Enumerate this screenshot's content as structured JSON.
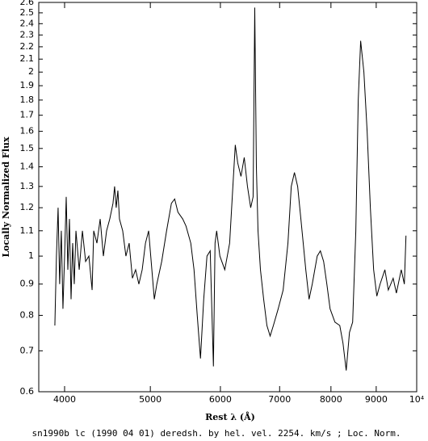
{
  "chart_data": {
    "type": "line",
    "x_label": "Rest λ (Å)",
    "y_label": "Locally Normalized Flux",
    "caption": "sn1990b lc (1990 04 01) deredsh. by hel. vel.  2254. km/s ;  Loc. Norm.",
    "x": [
      3900,
      3916,
      3933,
      3949,
      3966,
      3983,
      4000,
      4017,
      4034,
      4051,
      4068,
      4085,
      4102,
      4120,
      4155,
      4190,
      4225,
      4261,
      4297,
      4315,
      4351,
      4388,
      4425,
      4462,
      4499,
      4537,
      4556,
      4575,
      4595,
      4614,
      4653,
      4692,
      4732,
      4772,
      4812,
      4853,
      4895,
      4937,
      4978,
      5020,
      5052,
      5085,
      5150,
      5216,
      5282,
      5327,
      5372,
      5440,
      5486,
      5555,
      5602,
      5649,
      5697,
      5745,
      5794,
      5843,
      5892,
      5917,
      5942,
      5992,
      6069,
      6146,
      6198,
      6237,
      6277,
      6330,
      6384,
      6438,
      6492,
      6533,
      6561,
      6589,
      6617,
      6659,
      6715,
      6772,
      6829,
      6887,
      6974,
      7064,
      7153,
      7215,
      7275,
      7336,
      7398,
      7493,
      7557,
      7620,
      7719,
      7783,
      7849,
      7915,
      7982,
      8083,
      8186,
      8255,
      8324,
      8395,
      8465,
      8535,
      8589,
      8643,
      8716,
      8790,
      8864,
      8940,
      9015,
      9091,
      9206,
      9288,
      9406,
      9485,
      9606,
      9684,
      9725
    ],
    "values": [
      0.77,
      1.0,
      1.2,
      0.9,
      1.1,
      0.82,
      1.0,
      1.25,
      0.95,
      1.15,
      0.85,
      1.05,
      0.9,
      1.1,
      0.95,
      1.1,
      0.98,
      1.0,
      0.88,
      1.1,
      1.05,
      1.15,
      1.0,
      1.1,
      1.15,
      1.22,
      1.3,
      1.2,
      1.28,
      1.15,
      1.1,
      1.0,
      1.05,
      0.92,
      0.95,
      0.9,
      0.95,
      1.05,
      1.1,
      0.95,
      0.85,
      0.9,
      0.98,
      1.1,
      1.22,
      1.24,
      1.18,
      1.15,
      1.12,
      1.05,
      0.95,
      0.8,
      0.68,
      0.85,
      1.0,
      1.02,
      0.66,
      1.05,
      1.1,
      1.0,
      0.95,
      1.05,
      1.3,
      1.52,
      1.42,
      1.35,
      1.45,
      1.3,
      1.2,
      1.25,
      2.55,
      1.4,
      1.1,
      0.95,
      0.85,
      0.77,
      0.74,
      0.77,
      0.82,
      0.88,
      1.05,
      1.3,
      1.37,
      1.3,
      1.15,
      0.95,
      0.85,
      0.9,
      1.0,
      1.02,
      0.98,
      0.9,
      0.82,
      0.78,
      0.77,
      0.72,
      0.65,
      0.75,
      0.78,
      1.1,
      1.8,
      2.25,
      2.0,
      1.6,
      1.2,
      0.95,
      0.86,
      0.9,
      0.95,
      0.88,
      0.92,
      0.87,
      0.95,
      0.9,
      1.08
    ],
    "color": "#000000",
    "xscale": "log",
    "yscale": "log",
    "xlim": [
      3740,
      10000
    ],
    "xticks": [
      4000,
      5000,
      6000,
      7000,
      8000,
      9000,
      {
        "value": 10000,
        "label": "10⁴"
      }
    ],
    "ylim": [
      0.6,
      2.6
    ],
    "yticks": [
      0.6,
      0.7,
      0.8,
      0.9,
      1,
      1.1,
      1.2,
      1.3,
      1.4,
      1.5,
      1.6,
      1.7,
      1.8,
      1.9,
      2,
      2.1,
      2.2,
      2.3,
      2.4,
      2.5,
      2.6
    ]
  }
}
